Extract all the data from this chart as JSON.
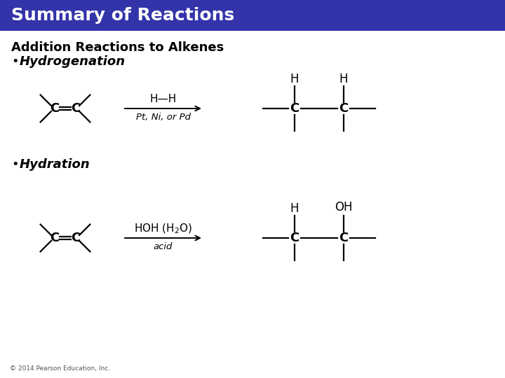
{
  "title": "Summary of Reactions",
  "title_bg": "#3333aa",
  "title_color": "#ffffff",
  "title_fontsize": 18,
  "subtitle": "Addition Reactions to Alkenes",
  "subtitle_fontsize": 13,
  "bullet1": "Hydrogenation",
  "bullet2": "Hydration",
  "bullet_fontsize": 13,
  "bg_color": "#ffffff",
  "text_color": "#000000",
  "copyright": "© 2014 Pearson Education, Inc.",
  "copyright_fontsize": 6.5,
  "fig_width": 7.2,
  "fig_height": 5.4,
  "dpi": 100
}
